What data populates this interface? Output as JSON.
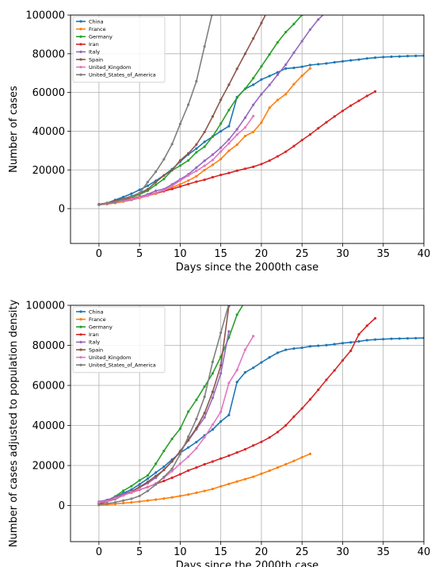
{
  "chart_data": [
    {
      "type": "line",
      "xlabel": "Days since the 2000th case",
      "ylabel": "Number of cases",
      "xlim": [
        -3.5,
        40
      ],
      "ylim": [
        -18000,
        100000
      ],
      "xticks": [
        0,
        5,
        10,
        15,
        20,
        25,
        30,
        35,
        40
      ],
      "yticks": [
        0,
        20000,
        40000,
        60000,
        80000,
        100000
      ],
      "grid": true,
      "legend_position": "top-left",
      "series": [
        {
          "name": "China",
          "color": "#1f77b4",
          "x": [
            0,
            1,
            2,
            3,
            4,
            5,
            6,
            7,
            8,
            9,
            10,
            11,
            12,
            13,
            14,
            15,
            16,
            17,
            18,
            19,
            20,
            21,
            22,
            23,
            24,
            25,
            26,
            27,
            28,
            29,
            30,
            31,
            32,
            33,
            34,
            35,
            36,
            37,
            38,
            39,
            40
          ],
          "y": [
            2000,
            2800,
            4500,
            6000,
            7700,
            9700,
            11800,
            14400,
            17200,
            20400,
            24300,
            28000,
            31000,
            34500,
            37200,
            40000,
            42600,
            57600,
            61900,
            64000,
            66700,
            68500,
            70400,
            72400,
            72700,
            73300,
            74200,
            74600,
            75000,
            75600,
            76100,
            76600,
            77000,
            77600,
            78000,
            78300,
            78500,
            78600,
            78800,
            78900,
            79000
          ]
        },
        {
          "name": "France",
          "color": "#ff7f0e",
          "x": [
            0,
            1,
            2,
            3,
            4,
            5,
            6,
            7,
            8,
            9,
            10,
            11,
            12,
            13,
            14,
            15,
            16,
            17,
            18,
            19,
            20,
            21,
            22,
            23,
            24,
            25,
            26
          ],
          "y": [
            2000,
            2300,
            2900,
            3600,
            4500,
            5400,
            6600,
            7700,
            9100,
            10900,
            12600,
            14500,
            16700,
            19900,
            22600,
            25600,
            29900,
            33000,
            37500,
            39600,
            44500,
            52100,
            56100,
            59100,
            64300,
            68600,
            72500
          ]
        },
        {
          "name": "Germany",
          "color": "#2ca02c",
          "x": [
            0,
            1,
            2,
            3,
            4,
            5,
            6,
            7,
            8,
            9,
            10,
            11,
            12,
            13,
            14,
            15,
            16,
            17,
            18,
            19,
            20,
            21,
            22,
            23,
            24,
            25
          ],
          "y": [
            2000,
            2700,
            3700,
            4600,
            5800,
            7300,
            9300,
            12300,
            15300,
            19800,
            22200,
            24900,
            29100,
            32000,
            37300,
            43900,
            50900,
            57300,
            61900,
            67400,
            73500,
            79700,
            85900,
            91200,
            95400,
            100100
          ]
        },
        {
          "name": "Iran",
          "color": "#d62728",
          "x": [
            0,
            1,
            2,
            3,
            4,
            5,
            6,
            7,
            8,
            9,
            10,
            11,
            12,
            13,
            14,
            15,
            16,
            17,
            18,
            19,
            20,
            21,
            22,
            23,
            24,
            25,
            26,
            27,
            28,
            29,
            30,
            31,
            32,
            33,
            34
          ],
          "y": [
            2300,
            2900,
            3500,
            4400,
            5200,
            6100,
            7200,
            8000,
            9000,
            10100,
            11400,
            12700,
            13900,
            14900,
            16200,
            17400,
            18400,
            19600,
            20600,
            21600,
            23000,
            24800,
            27000,
            29400,
            32300,
            35400,
            38300,
            41500,
            44600,
            47600,
            50500,
            53200,
            55700,
            58200,
            60500
          ]
        },
        {
          "name": "Italy",
          "color": "#9467bd",
          "x": [
            0,
            1,
            2,
            3,
            4,
            5,
            6,
            7,
            8,
            9,
            10,
            11,
            12,
            13,
            14,
            15,
            16,
            17,
            18,
            19,
            20,
            21,
            22,
            23,
            24,
            25,
            26,
            27,
            28
          ],
          "y": [
            2000,
            2500,
            3100,
            3900,
            4600,
            5900,
            7400,
            9200,
            10100,
            12500,
            15100,
            17700,
            21200,
            24700,
            27900,
            31500,
            35700,
            41000,
            47000,
            53600,
            59100,
            63900,
            69200,
            74400,
            80600,
            86500,
            92500,
            97700,
            101700
          ]
        },
        {
          "name": "Spain",
          "color": "#8c564b",
          "x": [
            0,
            1,
            2,
            3,
            4,
            5,
            6,
            7,
            8,
            9,
            10,
            11,
            12,
            13,
            14,
            15,
            16,
            17,
            18,
            19,
            20,
            21
          ],
          "y": [
            2100,
            2900,
            4300,
            5200,
            6400,
            8000,
            10000,
            13700,
            17100,
            19900,
            24900,
            28500,
            33100,
            39600,
            47600,
            56200,
            64000,
            72200,
            80000,
            87900,
            95900,
            104100
          ]
        },
        {
          "name": "United_Kingdom",
          "color": "#e377c2",
          "x": [
            0,
            1,
            2,
            3,
            4,
            5,
            6,
            7,
            8,
            9,
            10,
            11,
            12,
            13,
            14,
            15,
            16,
            17,
            18,
            19
          ],
          "y": [
            2000,
            2600,
            3300,
            3900,
            5000,
            5700,
            6700,
            8100,
            9500,
            11700,
            14500,
            17100,
            19500,
            22100,
            25100,
            29500,
            33700,
            38200,
            41900,
            47800
          ]
        },
        {
          "name": "United_States_of_America",
          "color": "#7f7f7f",
          "x": [
            0,
            1,
            2,
            3,
            4,
            5,
            6,
            7,
            8,
            9,
            10,
            11,
            12,
            13,
            14
          ],
          "y": [
            2000,
            2800,
            3500,
            4700,
            6400,
            7800,
            13700,
            19100,
            25500,
            33300,
            43700,
            53700,
            65800,
            83800,
            101700
          ]
        }
      ]
    },
    {
      "type": "line",
      "xlabel": "Days since the 2000th case",
      "ylabel": "Number of cases adjusted to population density",
      "xlim": [
        -3.5,
        40
      ],
      "ylim": [
        -18000,
        100000
      ],
      "xticks": [
        0,
        5,
        10,
        15,
        20,
        25,
        30,
        35,
        40
      ],
      "yticks": [
        0,
        20000,
        40000,
        60000,
        80000,
        100000
      ],
      "grid": true,
      "legend_position": "top-left",
      "series": [
        {
          "name": "China",
          "color": "#1f77b4",
          "x": [
            0,
            1,
            2,
            3,
            4,
            5,
            6,
            7,
            8,
            9,
            10,
            11,
            12,
            13,
            14,
            15,
            16,
            17,
            18,
            19,
            20,
            21,
            22,
            23,
            24,
            25,
            26,
            27,
            28,
            29,
            30,
            31,
            32,
            33,
            34,
            35,
            36,
            37,
            38,
            39,
            40
          ],
          "y": [
            1200,
            2700,
            4300,
            6200,
            8000,
            10600,
            13400,
            16500,
            19400,
            23000,
            26300,
            29000,
            31700,
            35000,
            38000,
            42000,
            45200,
            61700,
            66500,
            68800,
            71500,
            74000,
            76300,
            77800,
            78400,
            78800,
            79500,
            79800,
            80100,
            80600,
            81100,
            81500,
            82000,
            82600,
            82900,
            83100,
            83300,
            83400,
            83500,
            83600,
            83700
          ]
        },
        {
          "name": "France",
          "color": "#ff7f0e",
          "x": [
            0,
            1,
            2,
            3,
            4,
            5,
            6,
            7,
            8,
            9,
            10,
            11,
            12,
            13,
            14,
            15,
            16,
            17,
            18,
            19,
            20,
            21,
            22,
            23,
            24,
            25,
            26
          ],
          "y": [
            200,
            500,
            800,
            1200,
            1600,
            2000,
            2500,
            3000,
            3500,
            4100,
            4800,
            5500,
            6400,
            7300,
            8300,
            9600,
            10800,
            12000,
            13200,
            14400,
            15900,
            17400,
            19000,
            20600,
            22300,
            24100,
            25800
          ]
        },
        {
          "name": "Germany",
          "color": "#2ca02c",
          "x": [
            0,
            1,
            2,
            3,
            4,
            5,
            6,
            7,
            8,
            9,
            10,
            11,
            12,
            13,
            14,
            15,
            16,
            17,
            18
          ],
          "y": [
            1000,
            2500,
            4600,
            7400,
            9700,
            12600,
            15000,
            20900,
            27300,
            33300,
            38400,
            46900,
            52800,
            59400,
            66000,
            74300,
            83900,
            95300,
            102000
          ]
        },
        {
          "name": "Iran",
          "color": "#d62728",
          "x": [
            0,
            1,
            2,
            3,
            4,
            5,
            6,
            7,
            8,
            9,
            10,
            11,
            12,
            13,
            14,
            15,
            16,
            17,
            18,
            19,
            20,
            21,
            22,
            23,
            24,
            25,
            26,
            27,
            28,
            29,
            30,
            31,
            32,
            33,
            34
          ],
          "y": [
            1000,
            2800,
            3900,
            5200,
            6500,
            7900,
            9300,
            10800,
            12300,
            13900,
            15600,
            17500,
            19000,
            20600,
            22000,
            23500,
            24900,
            26500,
            28100,
            30000,
            31800,
            34000,
            36700,
            40000,
            44400,
            48500,
            53000,
            57800,
            62800,
            67500,
            72500,
            77300,
            85500,
            89800,
            93500
          ]
        },
        {
          "name": "Italy",
          "color": "#9467bd",
          "x": [
            0,
            1,
            2,
            3,
            4,
            5,
            6,
            7,
            8,
            9,
            10,
            11,
            12,
            13,
            14,
            15,
            16
          ],
          "y": [
            2000,
            2800,
            4200,
            5600,
            7100,
            9100,
            11200,
            13900,
            17900,
            22000,
            27000,
            32500,
            38100,
            44000,
            53800,
            66000,
            87000
          ]
        },
        {
          "name": "Spain",
          "color": "#8c564b",
          "x": [
            0,
            1,
            2,
            3,
            4,
            5,
            6,
            7,
            8,
            9,
            10,
            11,
            12,
            13,
            14,
            15,
            16
          ],
          "y": [
            700,
            2000,
            3200,
            5100,
            7000,
            9300,
            11800,
            14800,
            17800,
            22100,
            27200,
            32800,
            38700,
            46200,
            56800,
            70000,
            99700
          ]
        },
        {
          "name": "United_Kingdom",
          "color": "#e377c2",
          "x": [
            0,
            1,
            2,
            3,
            4,
            5,
            6,
            7,
            8,
            9,
            10,
            11,
            12,
            13,
            14,
            15,
            16,
            17,
            18,
            19
          ],
          "y": [
            1600,
            2100,
            3500,
            5000,
            6700,
            8100,
            9100,
            11100,
            13900,
            17200,
            20900,
            24400,
            28600,
            34100,
            40400,
            46800,
            61200,
            67700,
            77800,
            84600
          ]
        },
        {
          "name": "United_States_of_America",
          "color": "#7f7f7f",
          "x": [
            0,
            1,
            2,
            3,
            4,
            5,
            6,
            7,
            8,
            9,
            10,
            11,
            12,
            13,
            14,
            15,
            16
          ],
          "y": [
            500,
            1000,
            1600,
            2500,
            3400,
            4800,
            7300,
            10500,
            14300,
            18400,
            25600,
            34400,
            43200,
            54300,
            71800,
            86300,
            100700
          ]
        }
      ]
    }
  ]
}
